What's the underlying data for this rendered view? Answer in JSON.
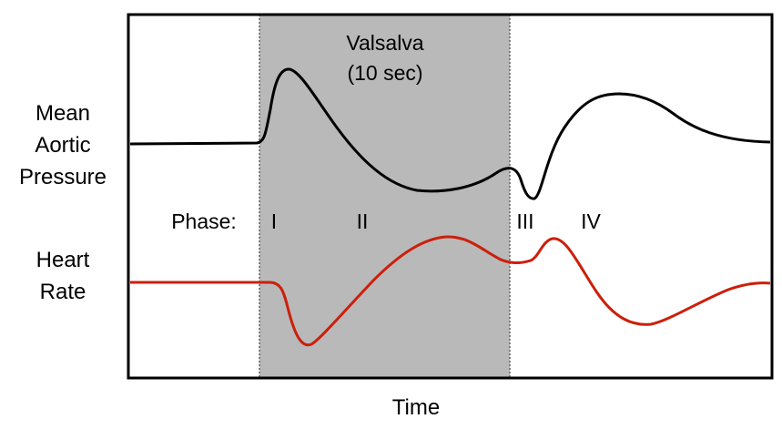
{
  "shaded_region": {
    "label_line1": "Valsalva",
    "label_line2": "(10 sec)",
    "color": "#b9b9b9"
  },
  "labels": {
    "pressure": "Mean\nAortic\nPressure",
    "heart_rate": "Heart\nRate",
    "phase_prefix": "Phase:",
    "phases": [
      "I",
      "II",
      "III",
      "IV"
    ],
    "x_axis": "Time"
  },
  "colors": {
    "pressure_line": "#000000",
    "heart_rate_line": "#cc1f0a",
    "frame": "#000000",
    "divider": "#444444"
  }
}
